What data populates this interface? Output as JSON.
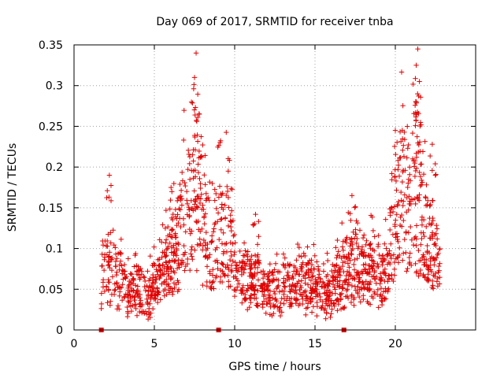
{
  "chart_data": {
    "type": "scatter",
    "title": "Day 069 of 2017, SRMTID for receiver tnba",
    "xlabel": "GPS time / hours",
    "ylabel": "SRMTID / TECUs",
    "xlim": [
      0,
      25
    ],
    "ylim": [
      0,
      0.35
    ],
    "xticks": [
      0,
      5,
      10,
      15,
      20
    ],
    "xtick_labels": [
      "0",
      "5",
      "10",
      "15",
      "20"
    ],
    "yticks": [
      0,
      0.05,
      0.1,
      0.15,
      0.2,
      0.25,
      0.3,
      0.35
    ],
    "ytick_labels": [
      "0",
      "0.05",
      "0.1",
      "0.15",
      "0.2",
      "0.25",
      "0.3",
      "0.35"
    ],
    "grid": true,
    "marker": "+",
    "color": "#e00000",
    "series": [
      {
        "name": "SRMTID",
        "approximate_profile": {
          "x": [
            1.7,
            2.0,
            2.5,
            3.0,
            3.5,
            4.0,
            4.5,
            5.0,
            5.5,
            6.0,
            6.5,
            7.0,
            7.5,
            8.0,
            8.5,
            9.0,
            9.5,
            10.0,
            10.5,
            11.0,
            11.5,
            12.0,
            12.5,
            13.0,
            13.5,
            14.0,
            14.5,
            15.0,
            15.5,
            16.0,
            16.5,
            17.0,
            17.5,
            18.0,
            18.5,
            19.0,
            19.5,
            20.0,
            20.5,
            21.0,
            21.5,
            22.0,
            22.5,
            22.8
          ],
          "y": [
            0.075,
            0.08,
            0.07,
            0.06,
            0.05,
            0.05,
            0.045,
            0.055,
            0.07,
            0.09,
            0.12,
            0.16,
            0.18,
            0.14,
            0.11,
            0.12,
            0.13,
            0.08,
            0.065,
            0.07,
            0.06,
            0.05,
            0.05,
            0.055,
            0.06,
            0.06,
            0.06,
            0.055,
            0.05,
            0.05,
            0.065,
            0.08,
            0.085,
            0.08,
            0.075,
            0.07,
            0.08,
            0.15,
            0.18,
            0.16,
            0.15,
            0.12,
            0.1,
            0.085
          ]
        },
        "peaks": [
          {
            "x": 2.2,
            "y": 0.19
          },
          {
            "x": 7.6,
            "y": 0.34
          },
          {
            "x": 7.5,
            "y": 0.31
          },
          {
            "x": 7.8,
            "y": 0.265
          },
          {
            "x": 9.6,
            "y": 0.195
          },
          {
            "x": 11.3,
            "y": 0.142
          },
          {
            "x": 17.3,
            "y": 0.165
          },
          {
            "x": 20.0,
            "y": 0.245
          },
          {
            "x": 21.4,
            "y": 0.345
          },
          {
            "x": 21.3,
            "y": 0.325
          },
          {
            "x": 21.5,
            "y": 0.305
          },
          {
            "x": 21.3,
            "y": 0.28
          },
          {
            "x": 21.6,
            "y": 0.252
          },
          {
            "x": 22.3,
            "y": 0.228
          }
        ],
        "baseline_markers": [
          1.7,
          9.0,
          16.8
        ]
      }
    ]
  }
}
